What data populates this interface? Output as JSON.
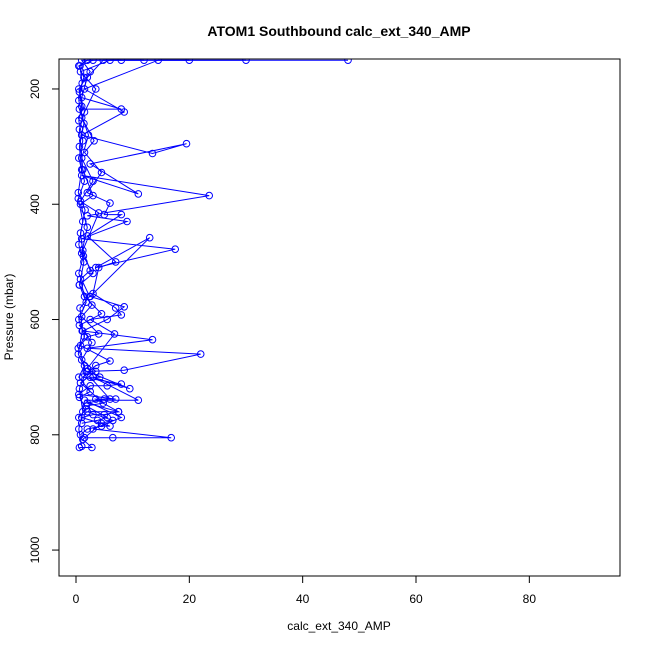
{
  "chart_data": {
    "type": "line",
    "title": "ATOM1 Southbound calc_ext_340_AMP",
    "xlabel": "calc_ext_340_AMP",
    "ylabel": "Pressure (mbar)",
    "xlim": [
      -3,
      96
    ],
    "ylim": [
      1045,
      148
    ],
    "y_reversed": true,
    "xticks": [
      0,
      20,
      40,
      60,
      80
    ],
    "yticks": [
      200,
      400,
      600,
      800,
      1000
    ],
    "grid": false,
    "legend": "none",
    "marker": "open-circle",
    "series_color": "#0000ff",
    "series": [
      {
        "points": [
          [
            1.0,
            820
          ],
          [
            0.5,
            790
          ],
          [
            1.2,
            760
          ],
          [
            0.6,
            720
          ],
          [
            1.8,
            690
          ],
          [
            0.4,
            660
          ],
          [
            1.1,
            620
          ],
          [
            0.7,
            580
          ],
          [
            2.4,
            560
          ],
          [
            0.5,
            520
          ],
          [
            1.3,
            490
          ],
          [
            0.8,
            450
          ],
          [
            1.6,
            410
          ],
          [
            0.4,
            380
          ],
          [
            1.0,
            340
          ],
          [
            0.6,
            300
          ],
          [
            1.4,
            260
          ],
          [
            0.5,
            220
          ],
          [
            1.1,
            190
          ],
          [
            0.7,
            160
          ],
          [
            3.0,
            150
          ]
        ]
      },
      {
        "points": [
          [
            1.5,
            805
          ],
          [
            6.5,
            805
          ],
          [
            16.8,
            805
          ],
          [
            3.0,
            790
          ],
          [
            8.0,
            770
          ],
          [
            1.5,
            740
          ],
          [
            11.0,
            740
          ],
          [
            3.0,
            700
          ],
          [
            9.5,
            720
          ],
          [
            2.0,
            690
          ],
          [
            8.5,
            688
          ],
          [
            22.0,
            660
          ],
          [
            2.0,
            650
          ],
          [
            13.5,
            635
          ],
          [
            1.2,
            620
          ],
          [
            5.5,
            600
          ],
          [
            8.5,
            578
          ],
          [
            2.5,
            560
          ],
          [
            13.0,
            458
          ],
          [
            3.5,
            510
          ],
          [
            17.5,
            478
          ],
          [
            1.0,
            460
          ],
          [
            9.0,
            430
          ],
          [
            2.0,
            420
          ],
          [
            23.5,
            385
          ],
          [
            1.0,
            350
          ],
          [
            11.0,
            382
          ],
          [
            2.5,
            330
          ],
          [
            19.5,
            295
          ],
          [
            13.5,
            312
          ],
          [
            1.0,
            280
          ],
          [
            8.5,
            240
          ],
          [
            1.5,
            200
          ],
          [
            14.5,
            150
          ],
          [
            48.0,
            150
          ]
        ]
      },
      {
        "points": [
          [
            0.6,
            822
          ],
          [
            2.8,
            822
          ],
          [
            1.2,
            808
          ],
          [
            4.5,
            780
          ],
          [
            6.5,
            775
          ],
          [
            2.0,
            760
          ],
          [
            7.5,
            760
          ],
          [
            3.5,
            738
          ],
          [
            6.0,
            738
          ],
          [
            2.5,
            700
          ],
          [
            4.2,
            700
          ],
          [
            2.0,
            685
          ],
          [
            6.8,
            625
          ],
          [
            2.5,
            600
          ],
          [
            8.0,
            592
          ],
          [
            7.0,
            580
          ],
          [
            3.0,
            555
          ],
          [
            4.0,
            510
          ],
          [
            7.0,
            500
          ],
          [
            2.0,
            455
          ],
          [
            8.0,
            418
          ],
          [
            5.0,
            418
          ],
          [
            6.0,
            398
          ],
          [
            2.0,
            380
          ],
          [
            4.5,
            345
          ],
          [
            1.5,
            310
          ],
          [
            3.2,
            290
          ],
          [
            1.0,
            250
          ],
          [
            3.5,
            200
          ],
          [
            0.8,
            170
          ],
          [
            6.0,
            150
          ],
          [
            30.0,
            150
          ]
        ]
      },
      {
        "points": [
          [
            1.0,
            780
          ],
          [
            3.8,
            775
          ],
          [
            5.5,
            770
          ],
          [
            1.8,
            750
          ],
          [
            4.8,
            745
          ],
          [
            0.8,
            710
          ],
          [
            3.5,
            690
          ],
          [
            1.0,
            670
          ],
          [
            2.8,
            640
          ],
          [
            0.6,
            610
          ],
          [
            4.5,
            590
          ],
          [
            1.5,
            560
          ],
          [
            0.8,
            530
          ],
          [
            2.5,
            515
          ],
          [
            1.2,
            480
          ],
          [
            4.0,
            415
          ],
          [
            0.8,
            395
          ],
          [
            3.0,
            360
          ],
          [
            1.0,
            320
          ],
          [
            2.2,
            280
          ],
          [
            0.6,
            235
          ],
          [
            8.0,
            235
          ],
          [
            1.0,
            215
          ],
          [
            2.0,
            180
          ],
          [
            4.8,
            150
          ],
          [
            12.0,
            150
          ]
        ]
      },
      {
        "points": [
          [
            0.8,
            800
          ],
          [
            2.0,
            790
          ],
          [
            4.5,
            785
          ],
          [
            6.0,
            785
          ],
          [
            1.0,
            770
          ],
          [
            3.0,
            765
          ],
          [
            5.0,
            765
          ],
          [
            7.5,
            760
          ],
          [
            2.0,
            745
          ],
          [
            5.0,
            738
          ],
          [
            7.0,
            738
          ],
          [
            0.5,
            730
          ],
          [
            2.5,
            715
          ],
          [
            5.5,
            715
          ],
          [
            8.0,
            712
          ],
          [
            1.2,
            700
          ],
          [
            3.5,
            680
          ],
          [
            6.0,
            672
          ],
          [
            0.8,
            645
          ],
          [
            2.0,
            630
          ],
          [
            4.0,
            625
          ],
          [
            1.0,
            595
          ],
          [
            2.8,
            575
          ],
          [
            0.6,
            540
          ],
          [
            3.0,
            520
          ],
          [
            1.0,
            485
          ],
          [
            2.0,
            440
          ],
          [
            0.8,
            400
          ],
          [
            3.0,
            385
          ],
          [
            1.2,
            340
          ],
          [
            0.6,
            270
          ],
          [
            1.5,
            240
          ],
          [
            0.5,
            200
          ],
          [
            2.5,
            170
          ],
          [
            1.0,
            150
          ],
          [
            8.0,
            150
          ]
        ]
      },
      {
        "points": [
          [
            0.5,
            770
          ],
          [
            1.8,
            755
          ],
          [
            0.6,
            735
          ],
          [
            2.5,
            725
          ],
          [
            0.5,
            700
          ],
          [
            1.5,
            680
          ],
          [
            0.4,
            650
          ],
          [
            1.5,
            630
          ],
          [
            0.5,
            600
          ],
          [
            1.8,
            570
          ],
          [
            0.6,
            540
          ],
          [
            1.4,
            500
          ],
          [
            0.5,
            470
          ],
          [
            1.2,
            430
          ],
          [
            0.4,
            390
          ],
          [
            1.5,
            360
          ],
          [
            0.5,
            320
          ],
          [
            1.2,
            290
          ],
          [
            0.5,
            255
          ],
          [
            1.0,
            230
          ],
          [
            0.6,
            205
          ],
          [
            1.4,
            180
          ],
          [
            0.5,
            160
          ],
          [
            2.0,
            150
          ],
          [
            20.0,
            150
          ]
        ]
      }
    ]
  }
}
